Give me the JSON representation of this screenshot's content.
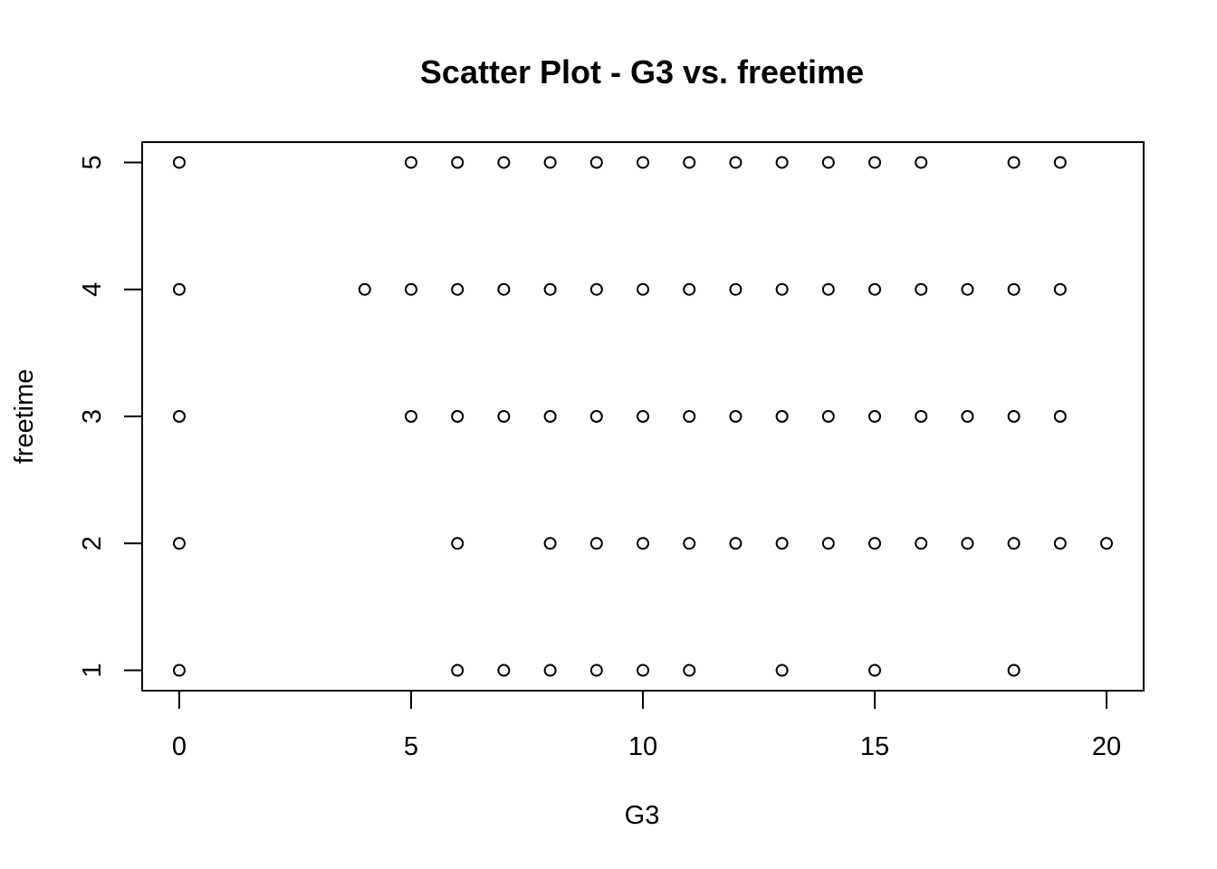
{
  "chart_data": {
    "type": "scatter",
    "title": "Scatter Plot - G3 vs. freetime",
    "xlabel": "G3",
    "ylabel": "freetime",
    "xlim": [
      -0.8,
      20.8
    ],
    "ylim": [
      0.84,
      5.16
    ],
    "xticks": [
      0,
      5,
      10,
      15,
      20
    ],
    "yticks": [
      1,
      2,
      3,
      4,
      5
    ],
    "grid": false,
    "legend": "none",
    "marker": "open-circle",
    "points": [
      {
        "x": 0,
        "y": 5
      },
      {
        "x": 5,
        "y": 5
      },
      {
        "x": 6,
        "y": 5
      },
      {
        "x": 7,
        "y": 5
      },
      {
        "x": 8,
        "y": 5
      },
      {
        "x": 9,
        "y": 5
      },
      {
        "x": 10,
        "y": 5
      },
      {
        "x": 11,
        "y": 5
      },
      {
        "x": 12,
        "y": 5
      },
      {
        "x": 13,
        "y": 5
      },
      {
        "x": 14,
        "y": 5
      },
      {
        "x": 15,
        "y": 5
      },
      {
        "x": 16,
        "y": 5
      },
      {
        "x": 18,
        "y": 5
      },
      {
        "x": 19,
        "y": 5
      },
      {
        "x": 0,
        "y": 4
      },
      {
        "x": 4,
        "y": 4
      },
      {
        "x": 5,
        "y": 4
      },
      {
        "x": 6,
        "y": 4
      },
      {
        "x": 7,
        "y": 4
      },
      {
        "x": 8,
        "y": 4
      },
      {
        "x": 9,
        "y": 4
      },
      {
        "x": 10,
        "y": 4
      },
      {
        "x": 11,
        "y": 4
      },
      {
        "x": 12,
        "y": 4
      },
      {
        "x": 13,
        "y": 4
      },
      {
        "x": 14,
        "y": 4
      },
      {
        "x": 15,
        "y": 4
      },
      {
        "x": 16,
        "y": 4
      },
      {
        "x": 17,
        "y": 4
      },
      {
        "x": 18,
        "y": 4
      },
      {
        "x": 19,
        "y": 4
      },
      {
        "x": 0,
        "y": 3
      },
      {
        "x": 5,
        "y": 3
      },
      {
        "x": 6,
        "y": 3
      },
      {
        "x": 7,
        "y": 3
      },
      {
        "x": 8,
        "y": 3
      },
      {
        "x": 9,
        "y": 3
      },
      {
        "x": 10,
        "y": 3
      },
      {
        "x": 11,
        "y": 3
      },
      {
        "x": 12,
        "y": 3
      },
      {
        "x": 13,
        "y": 3
      },
      {
        "x": 14,
        "y": 3
      },
      {
        "x": 15,
        "y": 3
      },
      {
        "x": 16,
        "y": 3
      },
      {
        "x": 17,
        "y": 3
      },
      {
        "x": 18,
        "y": 3
      },
      {
        "x": 19,
        "y": 3
      },
      {
        "x": 0,
        "y": 2
      },
      {
        "x": 6,
        "y": 2
      },
      {
        "x": 8,
        "y": 2
      },
      {
        "x": 9,
        "y": 2
      },
      {
        "x": 10,
        "y": 2
      },
      {
        "x": 11,
        "y": 2
      },
      {
        "x": 12,
        "y": 2
      },
      {
        "x": 13,
        "y": 2
      },
      {
        "x": 14,
        "y": 2
      },
      {
        "x": 15,
        "y": 2
      },
      {
        "x": 16,
        "y": 2
      },
      {
        "x": 17,
        "y": 2
      },
      {
        "x": 18,
        "y": 2
      },
      {
        "x": 19,
        "y": 2
      },
      {
        "x": 20,
        "y": 2
      },
      {
        "x": 0,
        "y": 1
      },
      {
        "x": 6,
        "y": 1
      },
      {
        "x": 7,
        "y": 1
      },
      {
        "x": 8,
        "y": 1
      },
      {
        "x": 9,
        "y": 1
      },
      {
        "x": 10,
        "y": 1
      },
      {
        "x": 11,
        "y": 1
      },
      {
        "x": 13,
        "y": 1
      },
      {
        "x": 15,
        "y": 1
      },
      {
        "x": 18,
        "y": 1
      }
    ]
  }
}
